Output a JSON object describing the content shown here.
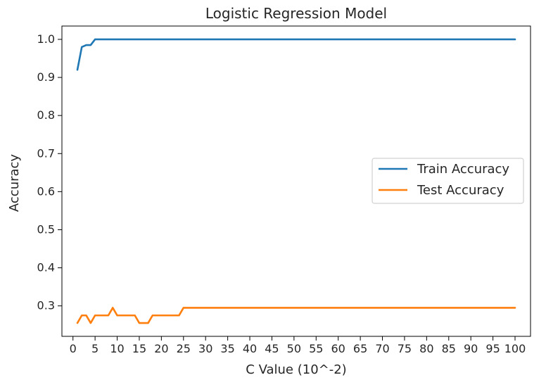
{
  "chart_data": {
    "type": "line",
    "title": "Logistic Regression Model",
    "xlabel": "C Value (10^-2)",
    "ylabel": "Accuracy",
    "xlim": [
      -2.5,
      103.5
    ],
    "ylim": [
      0.22,
      1.035
    ],
    "xticks": [
      0,
      5,
      10,
      15,
      20,
      25,
      30,
      35,
      40,
      45,
      50,
      55,
      60,
      65,
      70,
      75,
      80,
      85,
      90,
      95,
      100
    ],
    "xtick_labels": [
      "0",
      "5",
      "10",
      "15",
      "20",
      "25",
      "30",
      "35",
      "40",
      "45",
      "50",
      "55",
      "60",
      "65",
      "70",
      "75",
      "80",
      "85",
      "90",
      "95",
      "100"
    ],
    "yticks": [
      0.3,
      0.4,
      0.5,
      0.6,
      0.7,
      0.8,
      0.9,
      1.0
    ],
    "ytick_labels": [
      "0.3",
      "0.4",
      "0.5",
      "0.6",
      "0.7",
      "0.8",
      "0.9",
      "1.0"
    ],
    "grid": false,
    "legend": {
      "position": "center-right"
    },
    "series": [
      {
        "name": "Train Accuracy",
        "color": "#1f77b4",
        "x": [
          1,
          2,
          3,
          4,
          5,
          100
        ],
        "y": [
          0.92,
          0.98,
          0.985,
          0.985,
          1.0,
          1.0
        ]
      },
      {
        "name": "Test Accuracy",
        "color": "#ff7f0e",
        "x": [
          1,
          2,
          3,
          4,
          5,
          8,
          9,
          10,
          14,
          15,
          17,
          18,
          24,
          25,
          100
        ],
        "y": [
          0.255,
          0.275,
          0.275,
          0.255,
          0.275,
          0.275,
          0.295,
          0.275,
          0.275,
          0.255,
          0.255,
          0.275,
          0.275,
          0.295,
          0.295
        ]
      }
    ]
  }
}
